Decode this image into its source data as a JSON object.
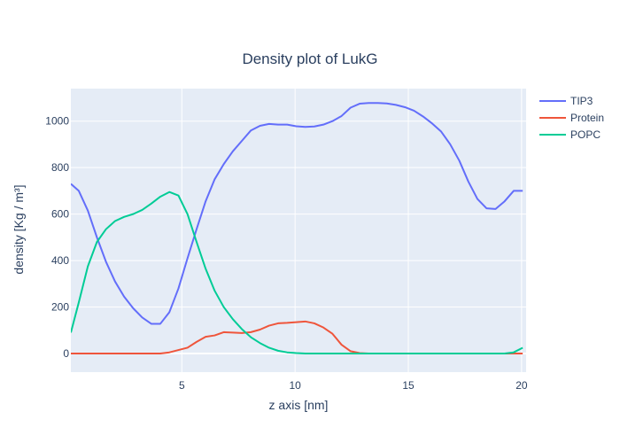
{
  "chart_data": {
    "type": "line",
    "title": "Density plot of LukG",
    "xlabel": "z axis [nm]",
    "ylabel": "density [Kg / m³]",
    "xlim": [
      0.1,
      20.2
    ],
    "ylim": [
      -80,
      1140
    ],
    "x_ticks": [
      5,
      10,
      15,
      20
    ],
    "y_ticks": [
      0,
      200,
      400,
      600,
      800,
      1000
    ],
    "grid": true,
    "legend_position": "top-right",
    "x": [
      0.1,
      0.45,
      0.85,
      1.25,
      1.65,
      2.05,
      2.45,
      2.85,
      3.25,
      3.65,
      4.05,
      4.45,
      4.85,
      5.25,
      5.65,
      6.05,
      6.45,
      6.85,
      7.25,
      7.65,
      8.05,
      8.45,
      8.85,
      9.25,
      9.65,
      10.05,
      10.45,
      10.85,
      11.25,
      11.65,
      12.05,
      12.45,
      12.85,
      13.25,
      13.65,
      14.05,
      14.45,
      14.85,
      15.25,
      15.65,
      16.05,
      16.45,
      16.85,
      17.25,
      17.65,
      18.05,
      18.45,
      18.85,
      19.25,
      19.65,
      20.05
    ],
    "series": [
      {
        "name": "TIP3",
        "color": "#636efa",
        "values": [
          730,
          700,
          615,
          500,
          395,
          310,
          245,
          195,
          155,
          128,
          128,
          178,
          280,
          410,
          535,
          655,
          750,
          815,
          870,
          915,
          960,
          980,
          988,
          985,
          985,
          978,
          975,
          977,
          985,
          1000,
          1022,
          1058,
          1075,
          1078,
          1078,
          1076,
          1070,
          1060,
          1045,
          1020,
          990,
          955,
          900,
          830,
          740,
          665,
          625,
          622,
          655,
          700,
          700
        ]
      },
      {
        "name": "Protein",
        "color": "#ef553b",
        "values": [
          0,
          0,
          0,
          0,
          0,
          0,
          0,
          0,
          0,
          0,
          0,
          5,
          15,
          25,
          50,
          72,
          78,
          92,
          90,
          88,
          92,
          103,
          120,
          130,
          132,
          135,
          138,
          130,
          112,
          85,
          38,
          10,
          2,
          0,
          0,
          0,
          0,
          0,
          0,
          0,
          0,
          0,
          0,
          0,
          0,
          0,
          0,
          0,
          0,
          0,
          0
        ]
      },
      {
        "name": "POPC",
        "color": "#00cc96",
        "values": [
          90,
          220,
          375,
          480,
          535,
          570,
          588,
          600,
          618,
          645,
          675,
          695,
          680,
          600,
          480,
          365,
          270,
          200,
          148,
          105,
          70,
          45,
          25,
          12,
          5,
          2,
          0,
          0,
          0,
          0,
          0,
          0,
          0,
          0,
          0,
          0,
          0,
          0,
          0,
          0,
          0,
          0,
          0,
          0,
          0,
          0,
          0,
          0,
          0,
          5,
          25
        ]
      }
    ]
  }
}
